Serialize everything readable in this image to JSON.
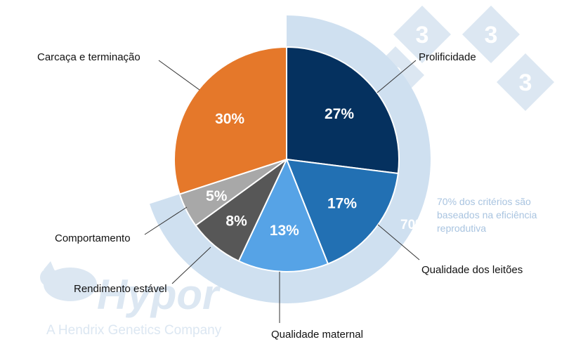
{
  "chart_data": {
    "type": "pie",
    "series": [
      {
        "label": "Prolificidade",
        "value": 27,
        "display": "27%",
        "color": "#05315f",
        "text_color": "#ffffff"
      },
      {
        "label": "Qualidade dos leitões",
        "value": 17,
        "display": "17%",
        "color": "#2270b3",
        "text_color": "#ffffff"
      },
      {
        "label": "Qualidade maternal",
        "value": 13,
        "display": "13%",
        "color": "#56a3e6",
        "text_color": "#ffffff"
      },
      {
        "label": "Rendimento estável",
        "value": 8,
        "display": "8%",
        "color": "#575757",
        "text_color": "#ffffff"
      },
      {
        "label": "Comportamento",
        "value": 5,
        "display": "5%",
        "color": "#a8a8a8",
        "text_color": "#ffffff"
      },
      {
        "label": "Carcaça e terminação",
        "value": 30,
        "display": "30%",
        "color": "#e5782a",
        "text_color": "#ffffff"
      }
    ],
    "highlight_arc": {
      "label": "70%",
      "covers": [
        "Prolificidade",
        "Qualidade dos leitões",
        "Qualidade maternal",
        "Rendimento estável",
        "Comportamento"
      ],
      "color": "#cfe0f0"
    },
    "annotation": {
      "lines": [
        "70% dos critérios são",
        "baseados na eficiência",
        "reprodutiva"
      ]
    }
  },
  "watermark": {
    "brand": "Hypor",
    "tagline": "A Hendrix Genetics Company",
    "badge_digit": "3"
  },
  "colors": {
    "slice_border": "#ffffff",
    "leader_line": "#333333",
    "watermark": "#dce7f2"
  }
}
